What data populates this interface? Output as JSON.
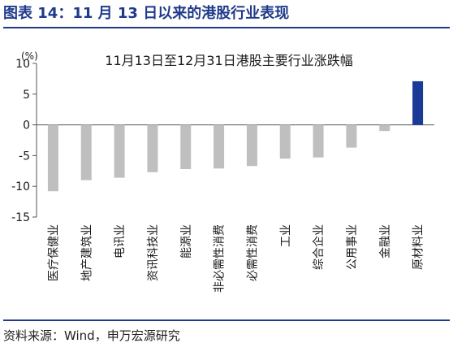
{
  "figure": {
    "title": "图表 14：11 月 13 日以来的港股行业表现",
    "source": "资料来源：Wind，申万宏源研究"
  },
  "colors": {
    "negative_bar": "#bfbfbf",
    "positive_bar": "#1a3a97",
    "title_blue": "#1f3a8a"
  },
  "chart_data": {
    "type": "bar",
    "title": "11月13日至12月31日港股主要行业涨跌幅",
    "ylabel": "(%)",
    "xlabel": "",
    "ylim": [
      -15,
      10
    ],
    "yticks": [
      10,
      5,
      0,
      -5,
      -10,
      -15
    ],
    "grid": false,
    "categories": [
      "医疗保健业",
      "地产建筑业",
      "电讯业",
      "资讯科技业",
      "能源业",
      "非必需性消费",
      "必需性消费",
      "工业",
      "综合企业",
      "公用事业",
      "金融业",
      "原材料业"
    ],
    "values": [
      -10.8,
      -9.0,
      -8.6,
      -7.7,
      -7.2,
      -7.1,
      -6.7,
      -5.5,
      -5.3,
      -3.7,
      -1.0,
      7.1
    ]
  }
}
